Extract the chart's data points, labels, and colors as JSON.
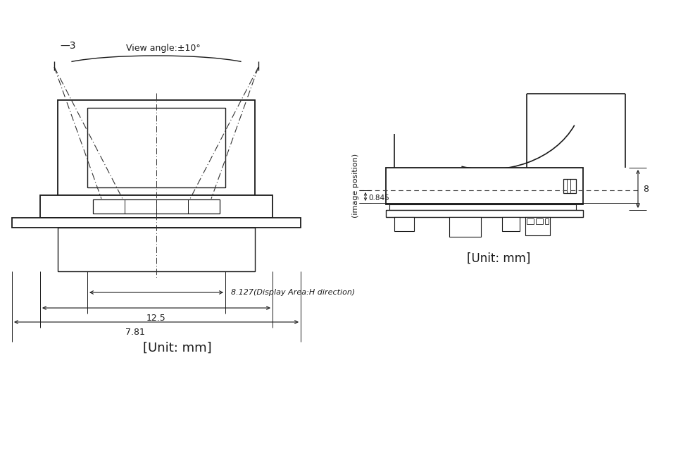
{
  "bg_color": "#ffffff",
  "line_color": "#1a1a1a",
  "dim_color": "#1a1a1a",
  "unit_text_left": "[Unit: mm]",
  "unit_text_right": "[Unit: mm]",
  "view_angle_text": "View angle:±10°",
  "dim_8127_text": "8.127(Display Area:H direction)",
  "dim_125_text": "12.5",
  "dim_781_text": "7.81",
  "dim_8_text": "8",
  "dim_0845_text": "0.845",
  "img_pos_text": "(image position)",
  "note3_text": "—3"
}
